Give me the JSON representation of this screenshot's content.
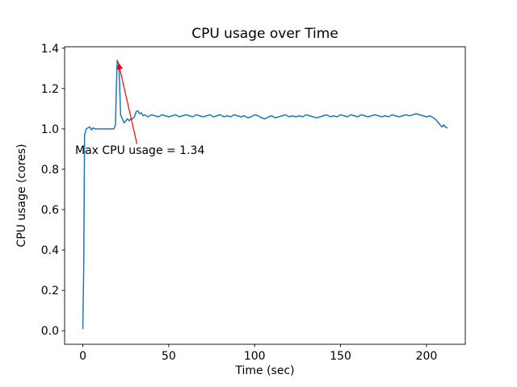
{
  "figure": {
    "title": "CPU usage over Time",
    "xlabel": "Time (sec)",
    "ylabel": "CPU usage (cores)"
  },
  "chart_data": {
    "type": "line",
    "title": "CPU usage over Time",
    "xlabel": "Time (sec)",
    "ylabel": "CPU usage (cores)",
    "xlim": [
      -10.6,
      222.6
    ],
    "ylim": [
      -0.067,
      1.407
    ],
    "xticks": [
      0,
      50,
      100,
      150,
      200
    ],
    "yticks": [
      0.0,
      0.2,
      0.4,
      0.6,
      0.8,
      1.0,
      1.2,
      1.4
    ],
    "grid": false,
    "legend": "none",
    "line_color": "#1f77b4",
    "line_width": 1.5,
    "max_value": 1.34,
    "annotation": {
      "text": "Max CPU usage = 1.34",
      "color": "#ff0000",
      "points_to_xy": [
        20.8,
        1.325
      ],
      "arrow_from_xy": [
        31.5,
        0.925
      ]
    },
    "series": [
      {
        "name": "CPU usage",
        "points": [
          [
            0,
            0.01
          ],
          [
            0.5,
            0.3
          ],
          [
            1,
            0.97
          ],
          [
            2,
            1.0
          ],
          [
            3,
            1.005
          ],
          [
            4,
            1.01
          ],
          [
            5,
            0.995
          ],
          [
            6,
            1.005
          ],
          [
            7,
            1.0
          ],
          [
            8,
            1.0
          ],
          [
            9,
            1.0
          ],
          [
            10,
            1.0
          ],
          [
            11,
            1.0
          ],
          [
            12,
            1.0
          ],
          [
            13,
            1.0
          ],
          [
            14,
            1.0
          ],
          [
            15,
            1.0
          ],
          [
            16,
            1.0
          ],
          [
            17,
            1.0
          ],
          [
            18,
            1.0
          ],
          [
            19,
            1.02
          ],
          [
            19.5,
            1.2
          ],
          [
            20,
            1.34
          ],
          [
            20.5,
            1.33
          ],
          [
            21,
            1.32
          ],
          [
            22,
            1.07
          ],
          [
            23,
            1.05
          ],
          [
            24,
            1.03
          ],
          [
            25,
            1.04
          ],
          [
            26,
            1.05
          ],
          [
            27,
            1.04
          ],
          [
            28,
            1.05
          ],
          [
            29,
            1.05
          ],
          [
            30,
            1.06
          ],
          [
            31,
            1.085
          ],
          [
            32,
            1.09
          ],
          [
            33,
            1.075
          ],
          [
            34,
            1.08
          ],
          [
            35,
            1.065
          ],
          [
            36,
            1.07
          ],
          [
            38,
            1.06
          ],
          [
            40,
            1.07
          ],
          [
            42,
            1.065
          ],
          [
            44,
            1.06
          ],
          [
            46,
            1.07
          ],
          [
            48,
            1.065
          ],
          [
            50,
            1.06
          ],
          [
            52,
            1.065
          ],
          [
            54,
            1.07
          ],
          [
            56,
            1.06
          ],
          [
            58,
            1.065
          ],
          [
            60,
            1.07
          ],
          [
            62,
            1.065
          ],
          [
            64,
            1.06
          ],
          [
            66,
            1.07
          ],
          [
            68,
            1.065
          ],
          [
            70,
            1.06
          ],
          [
            72,
            1.065
          ],
          [
            74,
            1.07
          ],
          [
            76,
            1.06
          ],
          [
            78,
            1.065
          ],
          [
            80,
            1.07
          ],
          [
            82,
            1.06
          ],
          [
            84,
            1.065
          ],
          [
            86,
            1.06
          ],
          [
            88,
            1.07
          ],
          [
            90,
            1.065
          ],
          [
            92,
            1.06
          ],
          [
            94,
            1.065
          ],
          [
            96,
            1.055
          ],
          [
            98,
            1.06
          ],
          [
            100,
            1.07
          ],
          [
            102,
            1.065
          ],
          [
            104,
            1.055
          ],
          [
            106,
            1.05
          ],
          [
            108,
            1.06
          ],
          [
            110,
            1.065
          ],
          [
            112,
            1.055
          ],
          [
            114,
            1.06
          ],
          [
            116,
            1.065
          ],
          [
            118,
            1.07
          ],
          [
            120,
            1.06
          ],
          [
            122,
            1.065
          ],
          [
            124,
            1.06
          ],
          [
            126,
            1.065
          ],
          [
            128,
            1.06
          ],
          [
            130,
            1.07
          ],
          [
            132,
            1.065
          ],
          [
            134,
            1.06
          ],
          [
            136,
            1.055
          ],
          [
            138,
            1.06
          ],
          [
            140,
            1.065
          ],
          [
            142,
            1.07
          ],
          [
            144,
            1.06
          ],
          [
            146,
            1.065
          ],
          [
            148,
            1.06
          ],
          [
            150,
            1.07
          ],
          [
            152,
            1.065
          ],
          [
            154,
            1.06
          ],
          [
            156,
            1.07
          ],
          [
            158,
            1.065
          ],
          [
            160,
            1.06
          ],
          [
            162,
            1.07
          ],
          [
            164,
            1.065
          ],
          [
            166,
            1.06
          ],
          [
            168,
            1.065
          ],
          [
            170,
            1.07
          ],
          [
            172,
            1.065
          ],
          [
            174,
            1.06
          ],
          [
            176,
            1.065
          ],
          [
            178,
            1.06
          ],
          [
            180,
            1.07
          ],
          [
            182,
            1.065
          ],
          [
            184,
            1.06
          ],
          [
            186,
            1.065
          ],
          [
            188,
            1.07
          ],
          [
            190,
            1.065
          ],
          [
            192,
            1.07
          ],
          [
            194,
            1.075
          ],
          [
            196,
            1.07
          ],
          [
            198,
            1.065
          ],
          [
            200,
            1.06
          ],
          [
            202,
            1.065
          ],
          [
            204,
            1.055
          ],
          [
            205,
            1.05
          ],
          [
            206,
            1.04
          ],
          [
            207,
            1.03
          ],
          [
            208,
            1.02
          ],
          [
            209,
            1.01
          ],
          [
            210,
            1.02
          ],
          [
            211,
            1.01
          ],
          [
            212,
            1.005
          ]
        ]
      }
    ]
  }
}
